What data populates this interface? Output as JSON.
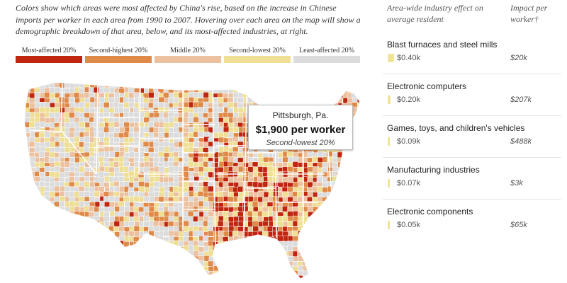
{
  "intro_text": "Colors show which areas were most affected by China's rise, based on the increase in Chinese imports per worker in each area from 1990 to 2007. Hovering over each area on the map will show a demographic breakdown of that area, below, and its most-affected industries, at right.",
  "legend": [
    {
      "label": "Most-affected 20%",
      "color": "#c0260f"
    },
    {
      "label": "Second-highest 20%",
      "color": "#e08a4a"
    },
    {
      "label": "Middle 20%",
      "color": "#ecc1a0"
    },
    {
      "label": "Second-lowest 20%",
      "color": "#eedf94"
    },
    {
      "label": "Least-affected 20%",
      "color": "#dcdcdc"
    }
  ],
  "tooltip": {
    "title": "Pittsburgh, Pa.",
    "value": "$1,900 per worker",
    "category": "Second-lowest 20%"
  },
  "side_headers": {
    "effect": "Area-wide industry effect on average resident",
    "impact": "Impact per worker†"
  },
  "industries": [
    {
      "name": "Blast furnaces and steel mills",
      "effect": "$0.40k",
      "effect_value": 0.4,
      "impact": "$20k"
    },
    {
      "name": "Electronic computers",
      "effect": "$0.20k",
      "effect_value": 0.2,
      "impact": "$207k"
    },
    {
      "name": "Games, toys, and children's vehicles",
      "effect": "$0.09k",
      "effect_value": 0.09,
      "impact": "$488k"
    },
    {
      "name": "Manufacturing industries",
      "effect": "$0.07k",
      "effect_value": 0.07,
      "impact": "$3k"
    },
    {
      "name": "Electronic components",
      "effect": "$0.05k",
      "effect_value": 0.05,
      "impact": "$65k"
    }
  ],
  "colors": {
    "most": "#c0260f",
    "second_high": "#e08a4a",
    "middle": "#ecc1a0",
    "second_low": "#eedf94",
    "least": "#dcdcdc",
    "bar": "#efe49a"
  }
}
